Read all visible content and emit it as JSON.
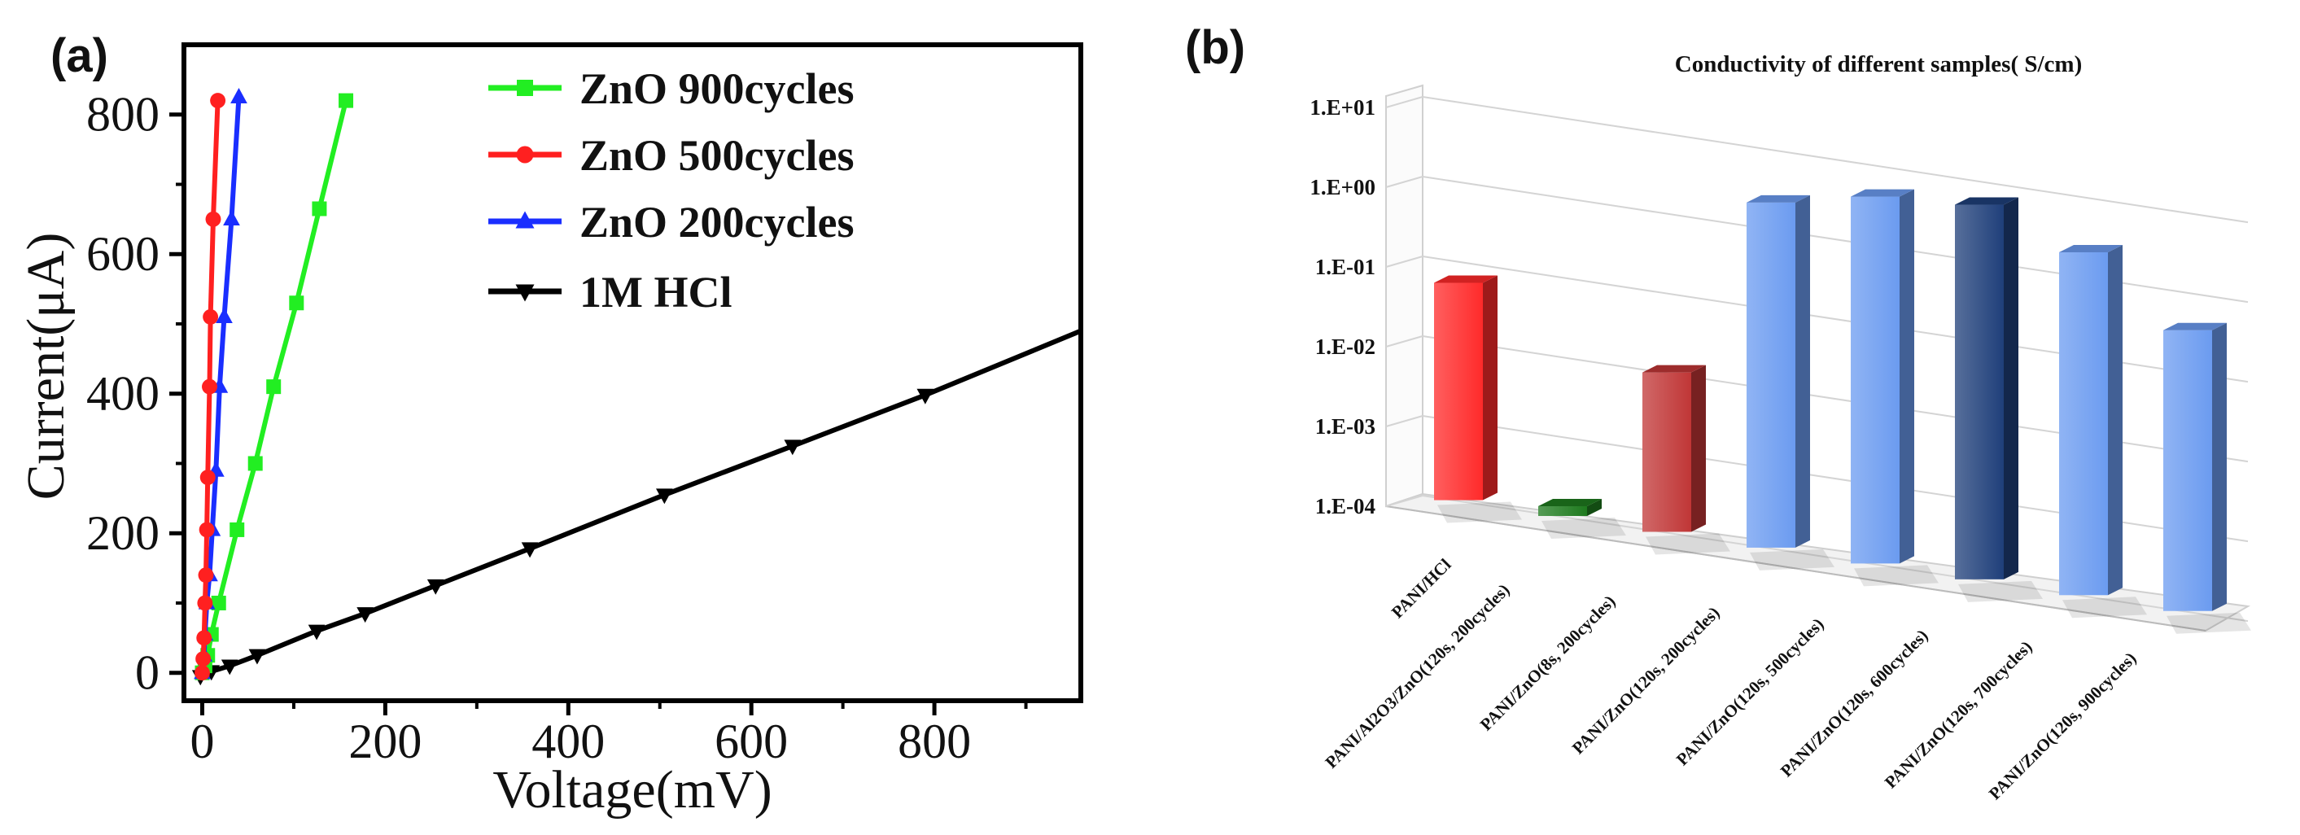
{
  "chart_data": [
    {
      "panel_label": "(a)",
      "type": "line",
      "title": "",
      "xlabel": "Voltage(mV)",
      "ylabel": "Current(μA)",
      "xlim": [
        -20,
        960
      ],
      "ylim": [
        -40,
        900
      ],
      "xticks": [
        0,
        200,
        400,
        600,
        800
      ],
      "xtick_labels": [
        "0",
        "200",
        "400",
        "600",
        "800"
      ],
      "yticks": [
        0,
        200,
        400,
        600,
        800
      ],
      "ytick_labels": [
        "0",
        "200",
        "400",
        "600",
        "800"
      ],
      "grid": false,
      "legend_position": "top-center",
      "series": [
        {
          "name": "ZnO 900cycles",
          "color": "#22ee22",
          "marker": "square",
          "x": [
            0,
            3,
            6,
            10,
            18,
            38,
            58,
            78,
            103,
            128,
            157
          ],
          "y": [
            0,
            10,
            25,
            55,
            100,
            205,
            300,
            410,
            530,
            665,
            820
          ]
        },
        {
          "name": "ZnO 500cycles",
          "color": "#ff2020",
          "marker": "circle",
          "x": [
            0,
            1,
            2,
            3,
            4,
            5,
            6,
            8,
            9,
            12,
            17
          ],
          "y": [
            0,
            20,
            50,
            100,
            140,
            205,
            280,
            410,
            510,
            650,
            820
          ]
        },
        {
          "name": "ZnO 200cycles",
          "color": "#1a2eff",
          "marker": "triangle-up",
          "x": [
            0,
            2,
            3,
            5,
            8,
            11,
            15,
            19,
            24,
            32,
            40
          ],
          "y": [
            0,
            25,
            55,
            100,
            140,
            205,
            290,
            410,
            510,
            650,
            825
          ]
        },
        {
          "name": "1M HCl",
          "color": "#000000",
          "marker": "triangle-down",
          "x": [
            -2,
            10,
            30,
            60,
            125,
            178,
            255,
            358,
            505,
            645,
            790,
            960
          ],
          "y": [
            -5,
            2,
            10,
            25,
            60,
            85,
            125,
            178,
            255,
            325,
            398,
            490
          ]
        }
      ]
    },
    {
      "panel_label": "(b)",
      "type": "bar",
      "title": "Conductivity of different samples( S/cm)",
      "xlabel": "",
      "ylabel": "",
      "scale": "log",
      "ylim": [
        0.0001,
        10
      ],
      "yticks": [
        0.0001,
        0.001,
        0.01,
        0.1,
        1,
        10
      ],
      "ytick_labels": [
        "1.E-04",
        "1.E-03",
        "1.E-02",
        "1.E-01",
        "1.E+00",
        "1.E+01"
      ],
      "grid": true,
      "legend_position": "none",
      "categories": [
        "PANI/HCl",
        "PANI/Al2O3/ZnO(120s, 200cycles)",
        "PANI/ZnO(8s, 200cycles)",
        "PANI/ZnO(120s, 200cycles)",
        "PANI/ZnO(120s, 500cycles)",
        "PANI/ZnO(120s, 600cycles)",
        "PANI/ZnO(120s, 700cycles)",
        "PANI/ZnO(120s, 900cycles)"
      ],
      "values": [
        0.08,
        0.0002,
        0.015,
        3.2,
        6.0,
        7.5,
        3.0,
        0.5
      ],
      "bar_colors": [
        "#ff2a2a",
        "#1e7a1e",
        "#c03636",
        "#6b9bf0",
        "#6b9bf0",
        "#1f3f7a",
        "#6b9bf0",
        "#6b9bf0"
      ]
    }
  ]
}
